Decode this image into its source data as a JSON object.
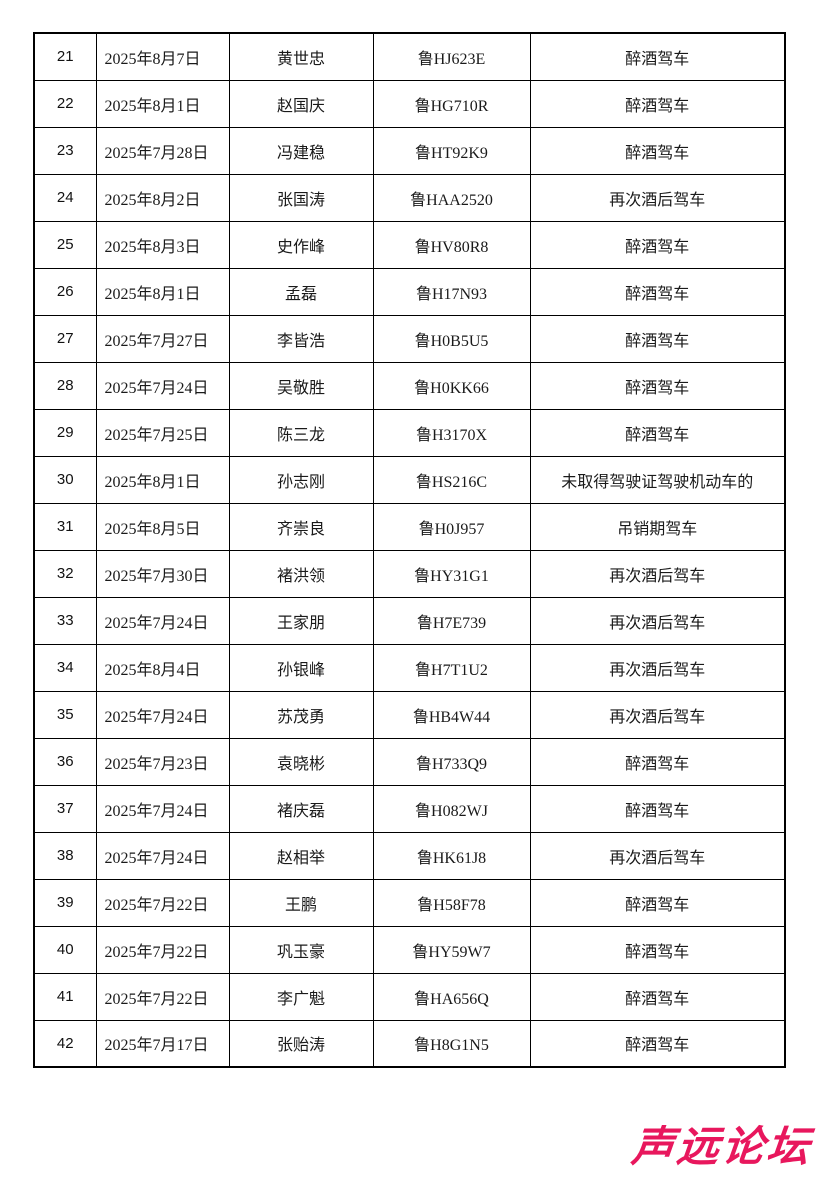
{
  "table": {
    "rows": [
      {
        "no": "21",
        "date": "2025年8月7日",
        "name": "黄世忠",
        "plate": "鲁HJ623E",
        "violation": "醉酒驾车"
      },
      {
        "no": "22",
        "date": "2025年8月1日",
        "name": "赵国庆",
        "plate": "鲁HG710R",
        "violation": "醉酒驾车"
      },
      {
        "no": "23",
        "date": "2025年7月28日",
        "name": "冯建稳",
        "plate": "鲁HT92K9",
        "violation": "醉酒驾车"
      },
      {
        "no": "24",
        "date": "2025年8月2日",
        "name": "张国涛",
        "plate": "鲁HAA2520",
        "violation": "再次酒后驾车"
      },
      {
        "no": "25",
        "date": "2025年8月3日",
        "name": "史作峰",
        "plate": "鲁HV80R8",
        "violation": "醉酒驾车"
      },
      {
        "no": "26",
        "date": "2025年8月1日",
        "name": "孟磊",
        "plate": "鲁H17N93",
        "violation": "醉酒驾车"
      },
      {
        "no": "27",
        "date": "2025年7月27日",
        "name": "李皆浩",
        "plate": "鲁H0B5U5",
        "violation": "醉酒驾车"
      },
      {
        "no": "28",
        "date": "2025年7月24日",
        "name": "吴敬胜",
        "plate": "鲁H0KK66",
        "violation": "醉酒驾车"
      },
      {
        "no": "29",
        "date": "2025年7月25日",
        "name": "陈三龙",
        "plate": "鲁H3170X",
        "violation": "醉酒驾车"
      },
      {
        "no": "30",
        "date": "2025年8月1日",
        "name": "孙志刚",
        "plate": "鲁HS216C",
        "violation": "未取得驾驶证驾驶机动车的"
      },
      {
        "no": "31",
        "date": "2025年8月5日",
        "name": "齐崇良",
        "plate": "鲁H0J957",
        "violation": "吊销期驾车"
      },
      {
        "no": "32",
        "date": "2025年7月30日",
        "name": "褚洪领",
        "plate": "鲁HY31G1",
        "violation": "再次酒后驾车"
      },
      {
        "no": "33",
        "date": "2025年7月24日",
        "name": "王家朋",
        "plate": "鲁H7E739",
        "violation": "再次酒后驾车"
      },
      {
        "no": "34",
        "date": "2025年8月4日",
        "name": "孙银峰",
        "plate": "鲁H7T1U2",
        "violation": "再次酒后驾车"
      },
      {
        "no": "35",
        "date": "2025年7月24日",
        "name": "苏茂勇",
        "plate": "鲁HB4W44",
        "violation": "再次酒后驾车"
      },
      {
        "no": "36",
        "date": "2025年7月23日",
        "name": "袁晓彬",
        "plate": "鲁H733Q9",
        "violation": "醉酒驾车"
      },
      {
        "no": "37",
        "date": "2025年7月24日",
        "name": "褚庆磊",
        "plate": "鲁H082WJ",
        "violation": "醉酒驾车"
      },
      {
        "no": "38",
        "date": "2025年7月24日",
        "name": "赵相举",
        "plate": "鲁HK61J8",
        "violation": "再次酒后驾车"
      },
      {
        "no": "39",
        "date": "2025年7月22日",
        "name": "王鹏",
        "plate": "鲁H58F78",
        "violation": "醉酒驾车"
      },
      {
        "no": "40",
        "date": "2025年7月22日",
        "name": "巩玉豪",
        "plate": "鲁HY59W7",
        "violation": "醉酒驾车"
      },
      {
        "no": "41",
        "date": "2025年7月22日",
        "name": "李广魁",
        "plate": "鲁HA656Q",
        "violation": "醉酒驾车"
      },
      {
        "no": "42",
        "date": "2025年7月17日",
        "name": "张贻涛",
        "plate": "鲁H8G1N5",
        "violation": "醉酒驾车"
      }
    ]
  },
  "footer": {
    "logo_text": "声远论坛",
    "logo_color": "#e8175d"
  }
}
